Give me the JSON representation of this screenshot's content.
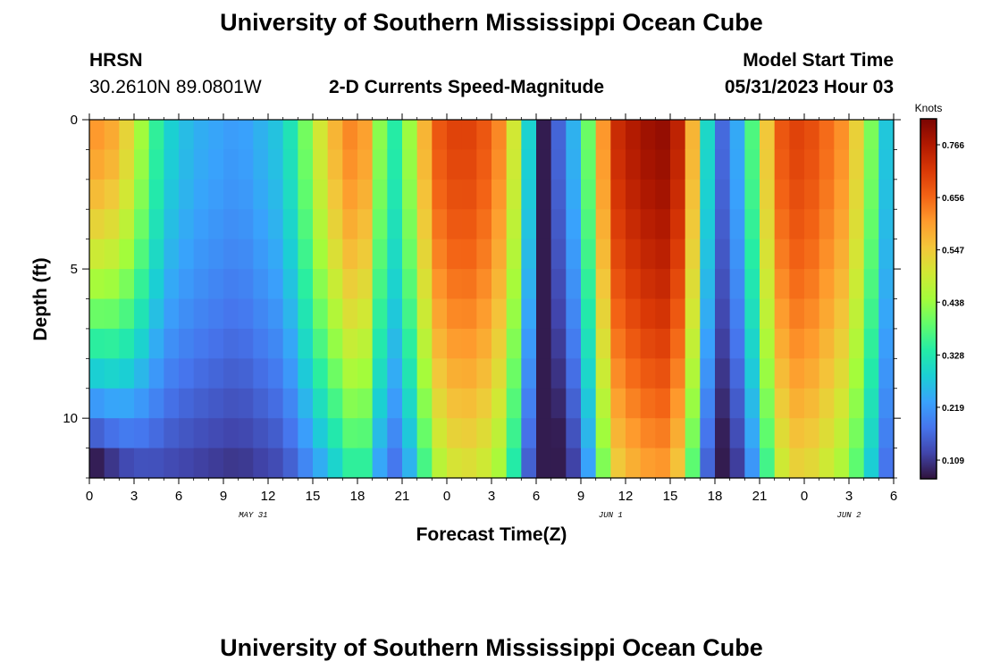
{
  "header": {
    "title": "University of Southern Mississippi Ocean Cube",
    "station": "HRSN",
    "coords": "30.2610N  89.0801W",
    "subtitle": "2-D Currents Speed-Magnitude",
    "start_label": "Model Start Time",
    "start_value": "05/31/2023 Hour 03"
  },
  "footer": {
    "title": "University of Southern Mississippi Ocean Cube"
  },
  "chart_data": {
    "type": "heatmap",
    "xlabel": "Forecast Time(Z)",
    "ylabel": "Depth (ft)",
    "x_tick_labels": [
      "0",
      "3",
      "6",
      "9",
      "12",
      "15",
      "18",
      "21",
      "0",
      "3",
      "6",
      "9",
      "12",
      "15",
      "18",
      "21",
      "0",
      "3",
      "6"
    ],
    "x_date_labels": [
      {
        "text": "MAY 31",
        "hour": 11
      },
      {
        "text": "JUN 1",
        "hour": 35
      },
      {
        "text": "JUN 2",
        "hour": 51
      }
    ],
    "xlim": [
      0,
      54
    ],
    "y_tick_labels": [
      "0",
      "5",
      "10"
    ],
    "ylim": [
      0,
      12
    ],
    "colorbar": {
      "label": "Knots",
      "ticks": [
        "0.109",
        "0.219",
        "0.328",
        "0.438",
        "0.547",
        "0.656",
        "0.766"
      ],
      "min": 0.07,
      "max": 0.82,
      "colors": [
        "#30123b",
        "#4145ab",
        "#4675ed",
        "#39a2fc",
        "#1bcfd4",
        "#24eca6",
        "#61fc6c",
        "#a4fc3b",
        "#d1e834",
        "#f3c63a",
        "#fe9b2d",
        "#f36315",
        "#d93806",
        "#b11901",
        "#7a0402"
      ]
    },
    "depth_rows": 12,
    "time_step_hours": 1,
    "speed_keyframes": {
      "hours": [
        0,
        2,
        4,
        5,
        7,
        10,
        13,
        14,
        16,
        18,
        19,
        20,
        21,
        22,
        23,
        24,
        26,
        28,
        29,
        30,
        30.5,
        31,
        32,
        33,
        34,
        35,
        37,
        39,
        40,
        41,
        42,
        43,
        44,
        45,
        46,
        47,
        48,
        49,
        51,
        53,
        54
      ],
      "surface": [
        0.62,
        0.58,
        0.4,
        0.3,
        0.25,
        0.22,
        0.28,
        0.36,
        0.55,
        0.65,
        0.55,
        0.3,
        0.38,
        0.5,
        0.65,
        0.7,
        0.7,
        0.6,
        0.4,
        0.18,
        0.08,
        0.12,
        0.2,
        0.3,
        0.5,
        0.72,
        0.78,
        0.8,
        0.7,
        0.45,
        0.15,
        0.18,
        0.3,
        0.45,
        0.65,
        0.7,
        0.7,
        0.67,
        0.6,
        0.35,
        0.2
      ],
      "decay": [
        0.95,
        0.85,
        0.7,
        0.6,
        0.55,
        0.55,
        0.55,
        0.55,
        0.55,
        0.45,
        0.45,
        0.5,
        0.5,
        0.42,
        0.35,
        0.3,
        0.28,
        0.3,
        0.4,
        0.6,
        0.6,
        0.6,
        0.6,
        0.5,
        0.4,
        0.28,
        0.25,
        0.25,
        0.3,
        0.4,
        0.6,
        0.6,
        0.5,
        0.4,
        0.32,
        0.25,
        0.25,
        0.25,
        0.28,
        0.35,
        0.4
      ]
    }
  }
}
